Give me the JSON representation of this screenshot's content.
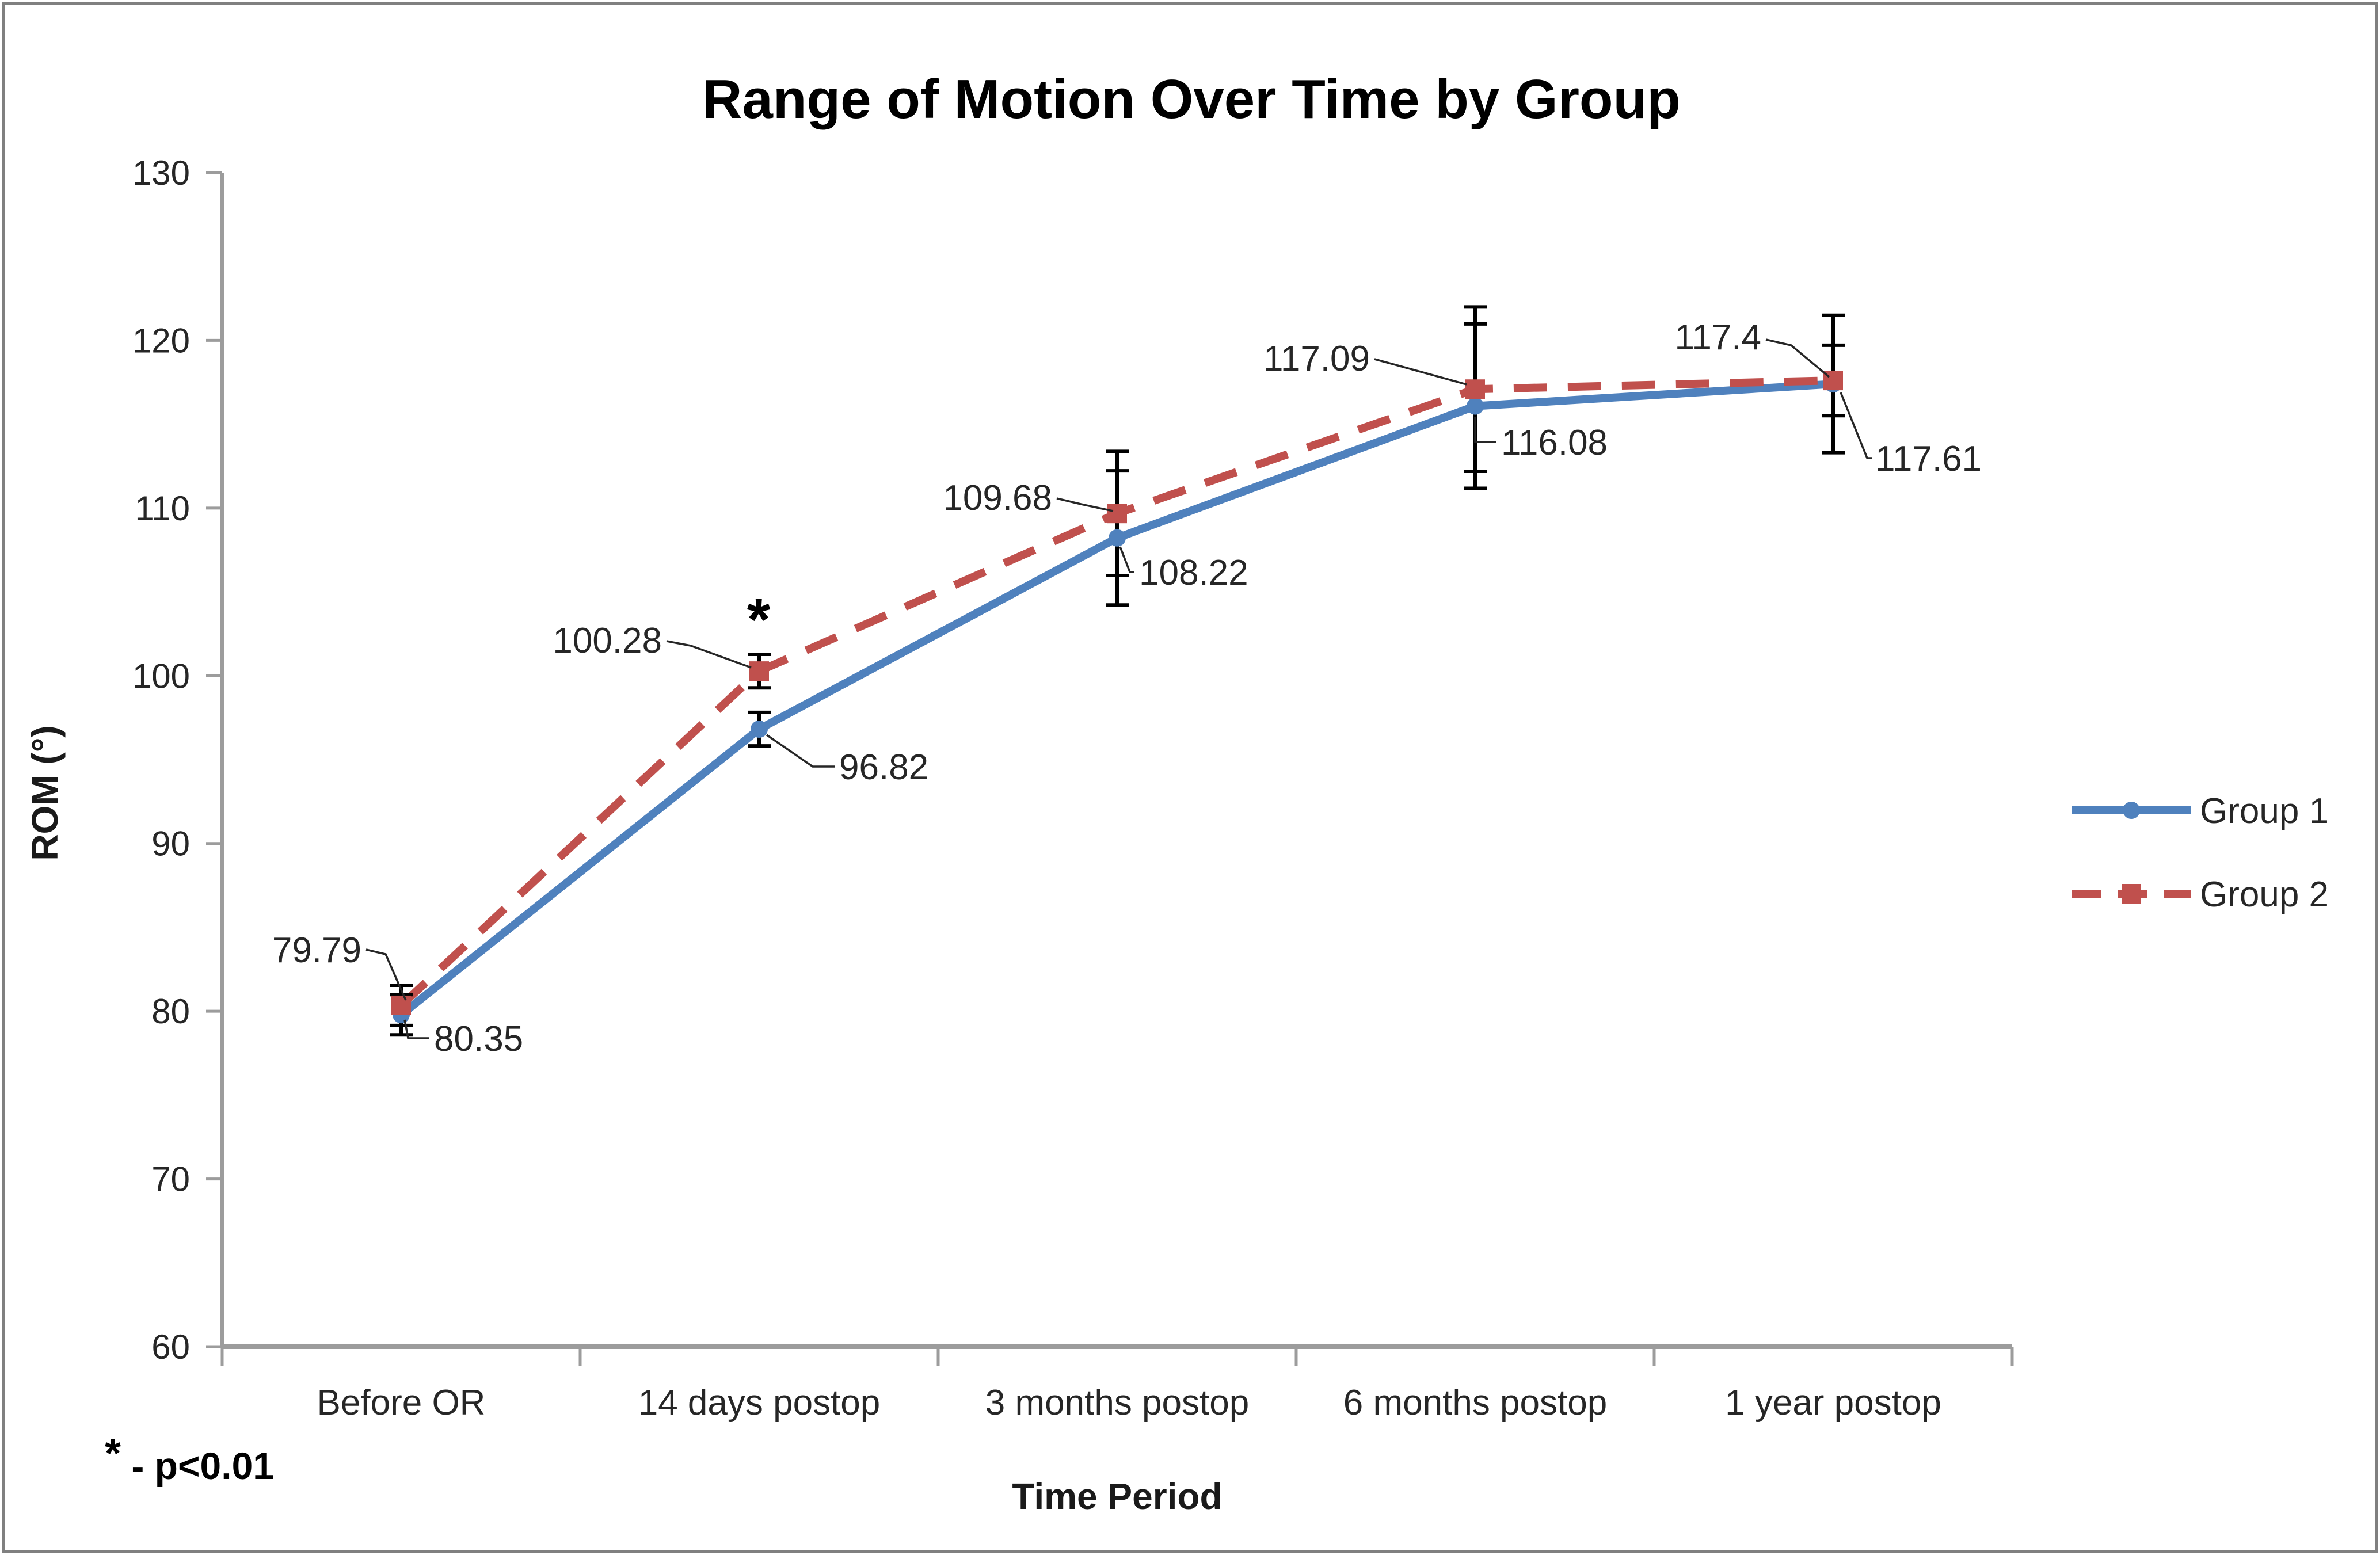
{
  "title": "Range of Motion Over Time by Group",
  "y_axis": {
    "title": "ROM (°)",
    "min": 60,
    "max": 130,
    "step": 10
  },
  "x_axis": {
    "title": "Time Period"
  },
  "legend": {
    "position": "right",
    "items": [
      {
        "label": "Group 1"
      },
      {
        "label": "Group 2"
      }
    ]
  },
  "significance": {
    "symbol": "*",
    "note_symbol": "*",
    "note_text": " - p<0.01"
  },
  "colors": {
    "group1": "#4F81BD",
    "group2": "#C0504D",
    "axis": "#9C9C9C",
    "error_bar": "#000000",
    "border": "#808080"
  },
  "chart_data": {
    "type": "line",
    "title": "Range of Motion Over Time by Group",
    "xlabel": "Time Period",
    "ylabel": "ROM (°)",
    "ylim": [
      60,
      130
    ],
    "y_tick_step": 10,
    "grid": false,
    "legend_position": "right",
    "categories": [
      "Before OR",
      "14 days postop",
      "3 months postop",
      "6 months postop",
      "1 year postop"
    ],
    "series": [
      {
        "name": "Group 1",
        "color": "#4F81BD",
        "line_style": "solid",
        "marker": "circle",
        "values": [
          79.79,
          96.82,
          108.22,
          116.08,
          117.4
        ],
        "error_bars": [
          1.2,
          1.0,
          4.0,
          4.9,
          4.1
        ]
      },
      {
        "name": "Group 2",
        "color": "#C0504D",
        "line_style": "dashed",
        "marker": "square",
        "values": [
          80.35,
          100.28,
          109.68,
          117.09,
          117.61
        ],
        "error_bars": [
          1.2,
          1.0,
          3.7,
          4.9,
          2.1
        ]
      }
    ],
    "annotations": [
      {
        "symbol": "*",
        "series": "Group 2",
        "category": "14 days postop",
        "meaning": "p<0.01"
      }
    ]
  }
}
